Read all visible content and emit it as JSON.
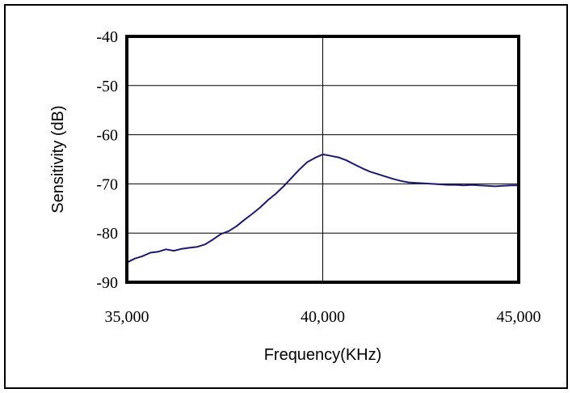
{
  "chart_data": {
    "type": "line",
    "title": "",
    "xlabel": "Frequency(KHz)",
    "ylabel": "Sensitivity (dB)",
    "xlim": [
      35000,
      45000
    ],
    "ylim": [
      -90,
      -40
    ],
    "x_ticks": [
      35000,
      40000,
      45000
    ],
    "x_tick_labels": [
      "35,000",
      "40,000",
      "45,000"
    ],
    "y_ticks": [
      -40,
      -50,
      -60,
      -70,
      -80,
      -90
    ],
    "y_tick_labels": [
      "-40",
      "-50",
      "-60",
      "-70",
      "-80",
      "-90"
    ],
    "grid": "major gridlines",
    "series": [
      {
        "color": "#1a1a6e",
        "x": [
          35000,
          35200,
          35400,
          35600,
          35800,
          36000,
          36200,
          36400,
          36600,
          36800,
          37000,
          37200,
          37400,
          37600,
          37800,
          38000,
          38200,
          38400,
          38600,
          38800,
          39000,
          39200,
          39400,
          39600,
          39800,
          40000,
          40200,
          40400,
          40600,
          40800,
          41000,
          41200,
          41400,
          41600,
          41800,
          42000,
          42200,
          42400,
          42600,
          42800,
          43000,
          43200,
          43400,
          43600,
          43800,
          44000,
          44200,
          44400,
          44600,
          44800,
          45000
        ],
        "values": [
          -86,
          -85.2,
          -84.7,
          -84.0,
          -83.8,
          -83.3,
          -83.6,
          -83.2,
          -83.0,
          -82.8,
          -82.3,
          -81.3,
          -80.2,
          -79.6,
          -78.6,
          -77.3,
          -76.1,
          -74.8,
          -73.3,
          -72.0,
          -70.5,
          -68.8,
          -67.1,
          -65.6,
          -64.7,
          -64.0,
          -64.3,
          -64.6,
          -65.2,
          -66.0,
          -66.8,
          -67.5,
          -68.0,
          -68.5,
          -69.0,
          -69.4,
          -69.7,
          -69.8,
          -69.9,
          -70.0,
          -70.1,
          -70.2,
          -70.2,
          -70.3,
          -70.2,
          -70.3,
          -70.4,
          -70.5,
          -70.4,
          -70.3,
          -70.3
        ]
      }
    ]
  }
}
